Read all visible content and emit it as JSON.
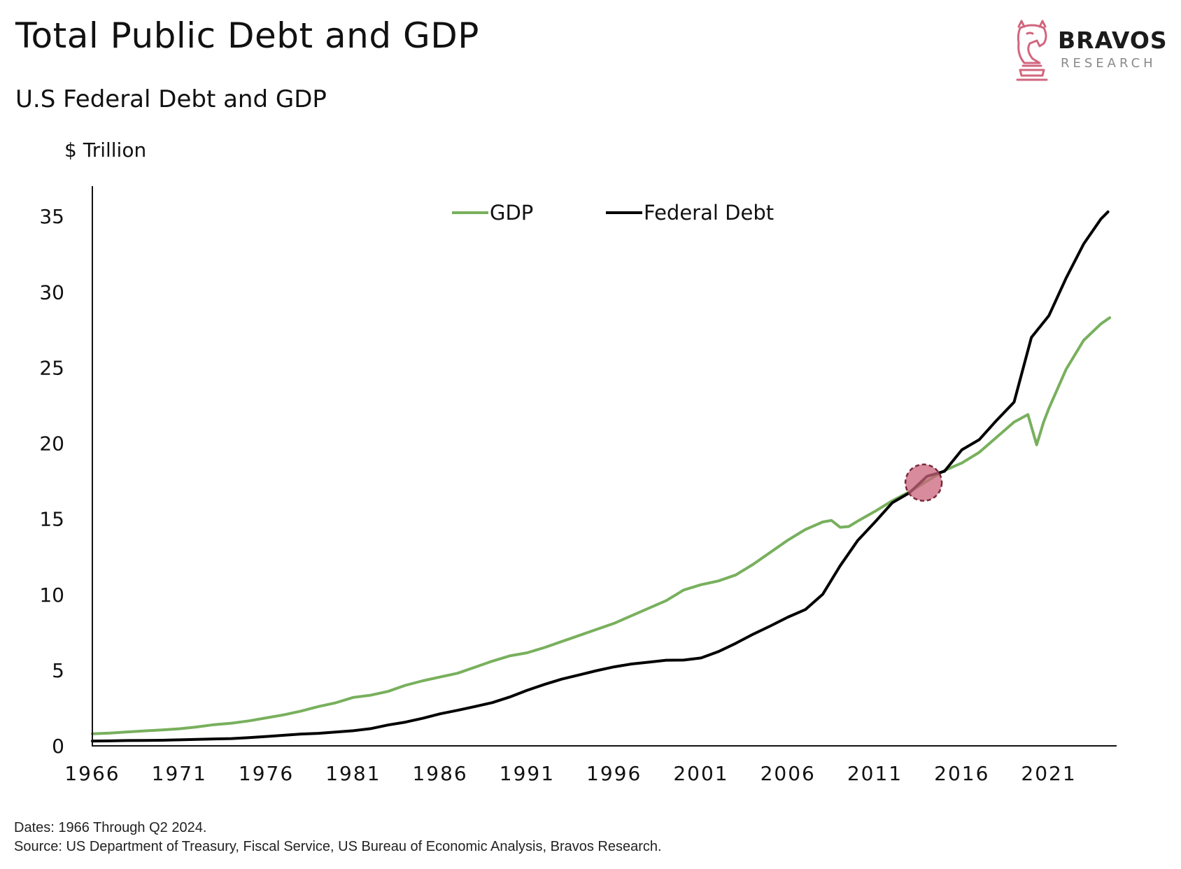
{
  "title": "Total Public Debt and GDP",
  "subtitle": "U.S Federal Debt and GDP",
  "brand": {
    "name": "BRAVOS",
    "sub": "RESEARCH",
    "logo_icon": "knight-chess-piece-icon",
    "logo_color": "#d1667e"
  },
  "footer": {
    "dates": "Dates: 1966 Through Q2 2024.",
    "source": "Source: US Department of Treasury, Fiscal Service, US Bureau of Economic Analysis, Bravos Research."
  },
  "chart_data": {
    "type": "line",
    "ylabel": "$ Trillion",
    "xlabel": "",
    "ylim": [
      0,
      37
    ],
    "xlim": [
      1966,
      2024.9
    ],
    "yticks": [
      0,
      5,
      10,
      15,
      20,
      25,
      30,
      35
    ],
    "xticks": [
      1966,
      1971,
      1976,
      1981,
      1986,
      1991,
      1996,
      2001,
      2006,
      2011,
      2016,
      2021
    ],
    "grid": false,
    "legend": {
      "position": "top-center"
    },
    "series": [
      {
        "name": "GDP",
        "color": "#78b05d",
        "points": [
          [
            1966,
            0.8
          ],
          [
            1967,
            0.84
          ],
          [
            1968,
            0.92
          ],
          [
            1969,
            0.99
          ],
          [
            1970,
            1.05
          ],
          [
            1971,
            1.13
          ],
          [
            1972,
            1.25
          ],
          [
            1973,
            1.4
          ],
          [
            1974,
            1.5
          ],
          [
            1975,
            1.65
          ],
          [
            1976,
            1.85
          ],
          [
            1977,
            2.05
          ],
          [
            1978,
            2.3
          ],
          [
            1979,
            2.6
          ],
          [
            1980,
            2.85
          ],
          [
            1981,
            3.2
          ],
          [
            1982,
            3.35
          ],
          [
            1983,
            3.6
          ],
          [
            1984,
            4.0
          ],
          [
            1985,
            4.3
          ],
          [
            1986,
            4.55
          ],
          [
            1987,
            4.8
          ],
          [
            1988,
            5.2
          ],
          [
            1989,
            5.6
          ],
          [
            1990,
            5.95
          ],
          [
            1991,
            6.15
          ],
          [
            1992,
            6.5
          ],
          [
            1993,
            6.9
          ],
          [
            1994,
            7.3
          ],
          [
            1995,
            7.7
          ],
          [
            1996,
            8.1
          ],
          [
            1997,
            8.6
          ],
          [
            1998,
            9.1
          ],
          [
            1999,
            9.6
          ],
          [
            2000,
            10.3
          ],
          [
            2001,
            10.65
          ],
          [
            2002,
            10.9
          ],
          [
            2003,
            11.3
          ],
          [
            2004,
            12.0
          ],
          [
            2005,
            12.8
          ],
          [
            2006,
            13.6
          ],
          [
            2007,
            14.3
          ],
          [
            2008,
            14.8
          ],
          [
            2008.5,
            14.9
          ],
          [
            2009,
            14.45
          ],
          [
            2009.5,
            14.5
          ],
          [
            2010,
            14.85
          ],
          [
            2011,
            15.5
          ],
          [
            2012,
            16.2
          ],
          [
            2013,
            16.8
          ],
          [
            2014,
            17.5
          ],
          [
            2015,
            18.2
          ],
          [
            2016,
            18.7
          ],
          [
            2017,
            19.4
          ],
          [
            2018,
            20.4
          ],
          [
            2019,
            21.4
          ],
          [
            2019.8,
            21.9
          ],
          [
            2020.3,
            19.9
          ],
          [
            2020.7,
            21.4
          ],
          [
            2021,
            22.3
          ],
          [
            2022,
            24.9
          ],
          [
            2023,
            26.8
          ],
          [
            2024,
            27.9
          ],
          [
            2024.5,
            28.3
          ]
        ]
      },
      {
        "name": "Federal Debt",
        "color": "#000000",
        "points": [
          [
            1966,
            0.32
          ],
          [
            1967,
            0.33
          ],
          [
            1968,
            0.35
          ],
          [
            1969,
            0.36
          ],
          [
            1970,
            0.37
          ],
          [
            1971,
            0.4
          ],
          [
            1972,
            0.43
          ],
          [
            1973,
            0.46
          ],
          [
            1974,
            0.48
          ],
          [
            1975,
            0.54
          ],
          [
            1976,
            0.62
          ],
          [
            1977,
            0.7
          ],
          [
            1978,
            0.78
          ],
          [
            1979,
            0.83
          ],
          [
            1980,
            0.91
          ],
          [
            1981,
            1.0
          ],
          [
            1982,
            1.14
          ],
          [
            1983,
            1.38
          ],
          [
            1984,
            1.57
          ],
          [
            1985,
            1.82
          ],
          [
            1986,
            2.12
          ],
          [
            1987,
            2.35
          ],
          [
            1988,
            2.6
          ],
          [
            1989,
            2.86
          ],
          [
            1990,
            3.23
          ],
          [
            1991,
            3.67
          ],
          [
            1992,
            4.06
          ],
          [
            1993,
            4.41
          ],
          [
            1994,
            4.69
          ],
          [
            1995,
            4.97
          ],
          [
            1996,
            5.22
          ],
          [
            1997,
            5.41
          ],
          [
            1998,
            5.53
          ],
          [
            1999,
            5.66
          ],
          [
            2000,
            5.67
          ],
          [
            2001,
            5.81
          ],
          [
            2002,
            6.23
          ],
          [
            2003,
            6.78
          ],
          [
            2004,
            7.38
          ],
          [
            2005,
            7.93
          ],
          [
            2006,
            8.51
          ],
          [
            2007,
            9.01
          ],
          [
            2008,
            10.02
          ],
          [
            2009,
            11.9
          ],
          [
            2010,
            13.56
          ],
          [
            2011,
            14.79
          ],
          [
            2012,
            16.07
          ],
          [
            2013,
            16.74
          ],
          [
            2014,
            17.82
          ],
          [
            2015,
            18.15
          ],
          [
            2016,
            19.57
          ],
          [
            2017,
            20.24
          ],
          [
            2018,
            21.52
          ],
          [
            2019,
            22.72
          ],
          [
            2020,
            27.0
          ],
          [
            2021,
            28.43
          ],
          [
            2022,
            30.93
          ],
          [
            2023,
            33.17
          ],
          [
            2024,
            34.83
          ],
          [
            2024.4,
            35.3
          ]
        ]
      }
    ],
    "highlight": {
      "x": 2013.8,
      "y": 17.4,
      "color": "#c9647c"
    }
  }
}
